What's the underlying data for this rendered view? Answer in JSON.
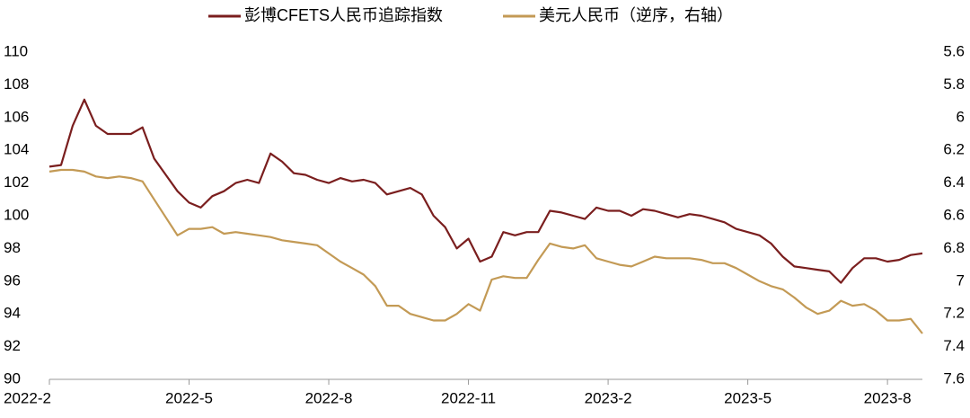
{
  "chart_data": {
    "type": "line",
    "categories": [
      "2022-2",
      null,
      null,
      null,
      null,
      null,
      null,
      null,
      null,
      null,
      null,
      null,
      "2022-5",
      null,
      null,
      null,
      null,
      null,
      null,
      null,
      null,
      null,
      null,
      null,
      "2022-8",
      null,
      null,
      null,
      null,
      null,
      null,
      null,
      null,
      null,
      null,
      null,
      "2022-11",
      null,
      null,
      null,
      null,
      null,
      null,
      null,
      null,
      null,
      null,
      null,
      "2023-2",
      null,
      null,
      null,
      null,
      null,
      null,
      null,
      null,
      null,
      null,
      null,
      "2023-5",
      null,
      null,
      null,
      null,
      null,
      null,
      null,
      null,
      null,
      null,
      null,
      "2023-8",
      null,
      null,
      null
    ],
    "series": [
      {
        "name": "彭博CFETS人民币追踪指数",
        "color": "#7a1e1e",
        "values": [
          103.0,
          103.1,
          105.5,
          107.1,
          105.5,
          105.0,
          105.0,
          105.0,
          105.4,
          103.5,
          102.5,
          101.5,
          100.8,
          100.5,
          101.2,
          101.5,
          102.0,
          102.2,
          102.0,
          103.8,
          103.3,
          102.6,
          102.5,
          102.2,
          102.0,
          102.3,
          102.1,
          102.2,
          102.0,
          101.3,
          101.5,
          101.7,
          101.3,
          100.0,
          99.3,
          98.0,
          98.6,
          97.2,
          97.5,
          99.0,
          98.8,
          99.0,
          99.0,
          100.3,
          100.2,
          100.0,
          99.8,
          100.5,
          100.3,
          100.3,
          100.0,
          100.4,
          100.3,
          100.1,
          99.9,
          100.1,
          100.0,
          99.8,
          99.6,
          99.2,
          99.0,
          98.8,
          98.3,
          97.5,
          96.9,
          96.8,
          96.7,
          96.6,
          95.9,
          96.8,
          97.4,
          97.4,
          97.2,
          97.3,
          97.6,
          97.7
        ]
      },
      {
        "name": "美元人民币（逆序，右轴）",
        "color": "#c39a55",
        "axis": "y2",
        "values": [
          6.33,
          6.32,
          6.32,
          6.33,
          6.36,
          6.37,
          6.36,
          6.37,
          6.39,
          6.5,
          6.61,
          6.72,
          6.68,
          6.68,
          6.67,
          6.71,
          6.7,
          6.71,
          6.72,
          6.73,
          6.75,
          6.76,
          6.77,
          6.78,
          6.83,
          6.88,
          6.92,
          6.96,
          7.03,
          7.15,
          7.15,
          7.2,
          7.22,
          7.24,
          7.24,
          7.2,
          7.14,
          7.18,
          6.99,
          6.97,
          6.98,
          6.98,
          6.87,
          6.77,
          6.79,
          6.8,
          6.78,
          6.86,
          6.88,
          6.9,
          6.91,
          6.88,
          6.85,
          6.86,
          6.86,
          6.86,
          6.87,
          6.89,
          6.89,
          6.92,
          6.96,
          7.0,
          7.03,
          7.05,
          7.1,
          7.16,
          7.2,
          7.18,
          7.12,
          7.15,
          7.14,
          7.18,
          7.24,
          7.24,
          7.23,
          7.32
        ]
      }
    ],
    "ylim": [
      90,
      110
    ],
    "yticks": [
      90,
      92,
      94,
      96,
      98,
      100,
      102,
      104,
      106,
      108,
      110
    ],
    "y2lim": [
      5.6,
      7.6
    ],
    "y2ticks": [
      5.6,
      5.8,
      6,
      6.2,
      6.4,
      6.6,
      6.8,
      7,
      7.2,
      7.4,
      7.6
    ],
    "y2_inverted": true,
    "grid": false,
    "legend": "top"
  }
}
